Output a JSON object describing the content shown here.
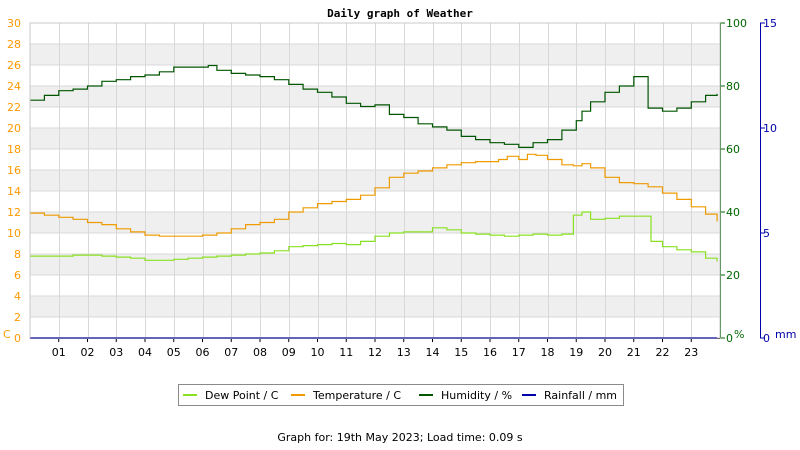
{
  "chart_data": {
    "type": "line",
    "title": "Daily graph of Weather",
    "x_ticks": [
      "01",
      "02",
      "03",
      "04",
      "05",
      "06",
      "07",
      "08",
      "09",
      "10",
      "11",
      "12",
      "13",
      "14",
      "15",
      "16",
      "17",
      "18",
      "19",
      "20",
      "21",
      "22",
      "23"
    ],
    "xlim": [
      0,
      24
    ],
    "axes": {
      "left": {
        "unit": "C",
        "ylim": [
          0,
          30
        ],
        "ticks": [
          0,
          2,
          4,
          6,
          8,
          10,
          12,
          14,
          16,
          18,
          20,
          22,
          24,
          26,
          28,
          30
        ],
        "color": "#ff9900"
      },
      "right1": {
        "unit": "%",
        "ylim": [
          0,
          100
        ],
        "ticks": [
          0,
          20,
          40,
          60,
          80,
          100
        ],
        "color": "#006600"
      },
      "right2": {
        "unit": "mm",
        "ylim": [
          0,
          15
        ],
        "ticks": [
          0,
          5,
          10,
          15
        ],
        "color": "#0000aa"
      }
    },
    "grid": true,
    "series": [
      {
        "name": "Dew Point / C",
        "axis": "left",
        "color": "#88e020",
        "x": [
          0,
          0.5,
          1,
          1.5,
          2,
          2.5,
          3,
          3.5,
          4,
          4.5,
          5,
          5.5,
          6,
          6.5,
          7,
          7.5,
          8,
          8.5,
          9,
          9.5,
          10,
          10.5,
          11,
          11.5,
          12,
          12.5,
          13,
          13.5,
          14,
          14.5,
          15,
          15.5,
          16,
          16.5,
          17,
          17.5,
          18,
          18.5,
          18.9,
          19.2,
          19.5,
          20,
          20.5,
          21,
          21.4,
          21.6,
          22,
          22.5,
          23,
          23.5,
          23.9
        ],
        "values": [
          7.8,
          7.8,
          7.8,
          7.9,
          7.9,
          7.8,
          7.7,
          7.6,
          7.4,
          7.4,
          7.5,
          7.6,
          7.7,
          7.8,
          7.9,
          8.0,
          8.1,
          8.3,
          8.7,
          8.8,
          8.9,
          9.0,
          8.9,
          9.2,
          9.7,
          10.0,
          10.1,
          10.1,
          10.5,
          10.3,
          10.0,
          9.9,
          9.8,
          9.7,
          9.8,
          9.9,
          9.8,
          9.9,
          11.7,
          12.0,
          11.3,
          11.4,
          11.6,
          11.6,
          11.6,
          9.2,
          8.7,
          8.4,
          8.2,
          7.6,
          7.3
        ]
      },
      {
        "name": "Temperature / C",
        "axis": "left",
        "color": "#ee9a00",
        "x": [
          0,
          0.5,
          1,
          1.5,
          2,
          2.5,
          3,
          3.5,
          4,
          4.5,
          5,
          5.5,
          6,
          6.5,
          7,
          7.5,
          8,
          8.5,
          9,
          9.5,
          10,
          10.5,
          11,
          11.5,
          12,
          12.5,
          13,
          13.5,
          14,
          14.5,
          15,
          15.5,
          16,
          16.3,
          16.6,
          17,
          17.3,
          17.6,
          18,
          18.5,
          18.9,
          19.2,
          19.5,
          20,
          20.5,
          21,
          21.5,
          22,
          22.5,
          23,
          23.5,
          23.9
        ],
        "values": [
          11.9,
          11.7,
          11.5,
          11.3,
          11.0,
          10.8,
          10.4,
          10.1,
          9.8,
          9.7,
          9.7,
          9.7,
          9.8,
          10.0,
          10.4,
          10.8,
          11.0,
          11.3,
          12.0,
          12.4,
          12.8,
          13.0,
          13.2,
          13.6,
          14.3,
          15.3,
          15.7,
          15.9,
          16.2,
          16.5,
          16.7,
          16.8,
          16.8,
          17.0,
          17.3,
          17.0,
          17.5,
          17.4,
          17.0,
          16.5,
          16.4,
          16.6,
          16.2,
          15.3,
          14.8,
          14.7,
          14.4,
          13.8,
          13.2,
          12.5,
          11.8,
          11.1
        ]
      },
      {
        "name": "Humidity / %",
        "axis": "right1",
        "color": "#005500",
        "x": [
          0,
          0.5,
          1,
          1.5,
          2,
          2.5,
          3,
          3.5,
          4,
          4.5,
          5,
          5.5,
          6,
          6.2,
          6.5,
          7,
          7.5,
          8,
          8.5,
          9,
          9.5,
          10,
          10.5,
          11,
          11.5,
          12,
          12.5,
          13,
          13.5,
          14,
          14.5,
          15,
          15.5,
          16,
          16.5,
          17,
          17.5,
          18,
          18.5,
          18.8,
          19,
          19.2,
          19.5,
          20,
          20.5,
          21,
          21.3,
          21.5,
          22,
          22.5,
          23,
          23.5,
          23.9
        ],
        "values": [
          75.5,
          77,
          78.5,
          79,
          80,
          81.5,
          82,
          83,
          83.5,
          84.5,
          86,
          86,
          86,
          86.5,
          85,
          84,
          83.5,
          83,
          82,
          80.5,
          79,
          78,
          76.5,
          74.5,
          73.5,
          74,
          71,
          70,
          68,
          67,
          66,
          64,
          63,
          62,
          61.5,
          60.5,
          62,
          63,
          66,
          66,
          69,
          72,
          75,
          78,
          80,
          83,
          83,
          73,
          72,
          73,
          75,
          77,
          77.5
        ]
      },
      {
        "name": "Rainfall / mm",
        "axis": "right2",
        "color": "#0000aa",
        "x": [
          0,
          23.9
        ],
        "values": [
          0,
          0
        ]
      }
    ]
  },
  "footer_text": "Graph for: 19th May 2023; Load time: 0.09 s"
}
